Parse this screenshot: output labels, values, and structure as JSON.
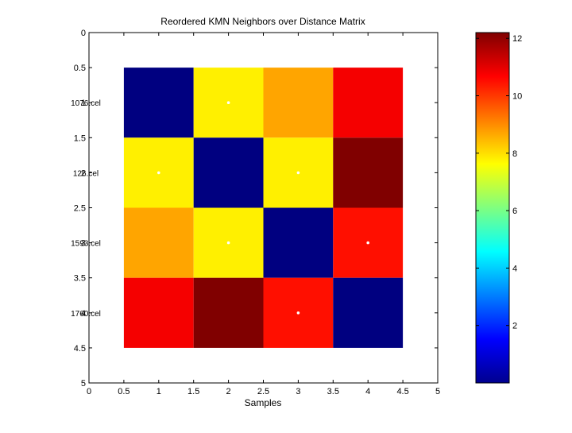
{
  "chart_data": {
    "type": "heatmap",
    "title": "Reordered KMN Neighbors over Distance Matrix",
    "xlabel": "Samples",
    "ylabel": "",
    "xlim": [
      0,
      5
    ],
    "ylim": [
      0,
      5
    ],
    "y_reversed": true,
    "x_ticks": [
      "0",
      "0.5",
      "1",
      "1.5",
      "2",
      "2.5",
      "3",
      "3.5",
      "4",
      "4.5",
      "5"
    ],
    "y_ticks": [
      "0",
      "0.5",
      "1",
      "1.5",
      "2",
      "2.5",
      "3",
      "3.5",
      "4",
      "4.5",
      "5"
    ],
    "row_labels": [
      "1076.cel",
      "126.cel",
      "1593.cel",
      "1760.cel"
    ],
    "matrix": [
      [
        0,
        7.8,
        8.7,
        10.8
      ],
      [
        7.8,
        0,
        7.8,
        12.2
      ],
      [
        8.7,
        7.8,
        0,
        10.5
      ],
      [
        10.8,
        12.2,
        10.5,
        0
      ]
    ],
    "neighbor_markers": [
      {
        "row": 1,
        "col": 2
      },
      {
        "row": 2,
        "col": 1
      },
      {
        "row": 2,
        "col": 3
      },
      {
        "row": 3,
        "col": 2
      },
      {
        "row": 3,
        "col": 4
      },
      {
        "row": 4,
        "col": 3
      }
    ],
    "colormap": "jet",
    "color_range": [
      0,
      12.2
    ],
    "colorbar_ticks": [
      "2",
      "4",
      "6",
      "8",
      "10",
      "12"
    ],
    "grid": false,
    "marker_color": "#ffffff"
  }
}
